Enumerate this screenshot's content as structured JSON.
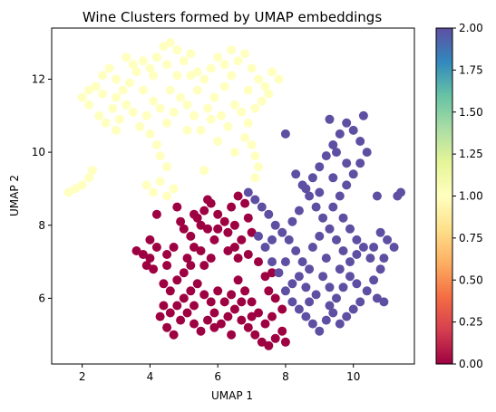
{
  "chart_data": {
    "type": "scatter",
    "title": "Wine Clusters formed by UMAP embeddings",
    "xlabel": "UMAP 1",
    "ylabel": "UMAP 2",
    "xlim": [
      1.1,
      11.8
    ],
    "ylim": [
      4.2,
      13.4
    ],
    "xticks": [
      2,
      4,
      6,
      8,
      10
    ],
    "yticks": [
      6,
      8,
      10,
      12
    ],
    "grid": false,
    "colormap": "Spectral",
    "colorbar": {
      "range": [
        0.0,
        2.0
      ],
      "ticks": [
        "0.00",
        "0.25",
        "0.50",
        "0.75",
        "1.00",
        "1.25",
        "1.50",
        "1.75",
        "2.00"
      ],
      "stops": [
        "#9e0142",
        "#d53e4f",
        "#f46d43",
        "#fdae61",
        "#fee08b",
        "#ffffbf",
        "#e6f598",
        "#abdda4",
        "#66c2a5",
        "#3288bd",
        "#5e4fa2"
      ]
    },
    "series": [
      {
        "cluster": 0,
        "color": "#9e0142",
        "points": [
          [
            3.6,
            7.3
          ],
          [
            3.8,
            7.2
          ],
          [
            4.0,
            7.1
          ],
          [
            3.9,
            6.9
          ],
          [
            4.1,
            6.8
          ],
          [
            4.0,
            7.6
          ],
          [
            4.2,
            7.4
          ],
          [
            4.5,
            7.2
          ],
          [
            4.4,
            6.4
          ],
          [
            4.6,
            6.2
          ],
          [
            4.8,
            6.5
          ],
          [
            5.0,
            6.7
          ],
          [
            5.2,
            6.9
          ],
          [
            5.1,
            7.1
          ],
          [
            5.3,
            7.4
          ],
          [
            5.2,
            7.7
          ],
          [
            4.9,
            8.1
          ],
          [
            5.4,
            8.2
          ],
          [
            5.6,
            8.4
          ],
          [
            5.8,
            8.6
          ],
          [
            6.0,
            8.3
          ],
          [
            6.2,
            8.1
          ],
          [
            6.4,
            8.5
          ],
          [
            6.6,
            8.8
          ],
          [
            6.8,
            8.6
          ],
          [
            6.5,
            8.0
          ],
          [
            6.3,
            7.8
          ],
          [
            6.0,
            7.9
          ],
          [
            5.9,
            7.6
          ],
          [
            5.7,
            7.9
          ],
          [
            5.5,
            8.0
          ],
          [
            5.3,
            8.3
          ],
          [
            6.7,
            7.6
          ],
          [
            6.5,
            7.4
          ],
          [
            6.9,
            7.2
          ],
          [
            6.6,
            7.1
          ],
          [
            6.3,
            7.3
          ],
          [
            4.4,
            5.8
          ],
          [
            4.3,
            5.5
          ],
          [
            4.5,
            5.2
          ],
          [
            4.7,
            5.0
          ],
          [
            4.9,
            5.4
          ],
          [
            5.1,
            5.6
          ],
          [
            5.3,
            5.3
          ],
          [
            5.5,
            5.1
          ],
          [
            5.7,
            5.4
          ],
          [
            5.9,
            5.6
          ],
          [
            6.1,
            5.3
          ],
          [
            6.3,
            5.5
          ],
          [
            6.5,
            5.7
          ],
          [
            6.7,
            5.4
          ],
          [
            6.9,
            5.2
          ],
          [
            7.1,
            5.0
          ],
          [
            7.3,
            4.8
          ],
          [
            7.5,
            4.7
          ],
          [
            7.7,
            4.9
          ],
          [
            7.4,
            5.3
          ],
          [
            7.2,
            5.6
          ],
          [
            7.0,
            5.9
          ],
          [
            6.8,
            6.2
          ],
          [
            6.6,
            6.5
          ],
          [
            6.4,
            6.1
          ],
          [
            6.2,
            5.9
          ],
          [
            6.0,
            6.2
          ],
          [
            5.8,
            5.9
          ],
          [
            5.6,
            6.1
          ],
          [
            5.4,
            6.4
          ],
          [
            5.2,
            6.2
          ],
          [
            5.0,
            6.0
          ],
          [
            4.8,
            5.8
          ],
          [
            4.6,
            5.6
          ],
          [
            5.6,
            6.9
          ],
          [
            5.0,
            7.9
          ],
          [
            5.8,
            7.1
          ],
          [
            7.5,
            6.2
          ],
          [
            7.7,
            6.0
          ],
          [
            7.9,
            5.7
          ],
          [
            7.6,
            5.5
          ],
          [
            7.9,
            5.1
          ],
          [
            8.0,
            4.8
          ],
          [
            4.2,
            8.3
          ],
          [
            4.8,
            8.5
          ],
          [
            5.7,
            8.7
          ],
          [
            6.9,
            8.2
          ],
          [
            7.0,
            7.8
          ],
          [
            7.2,
            7.0
          ],
          [
            7.4,
            6.6
          ],
          [
            7.6,
            6.7
          ],
          [
            5.3,
            5.8
          ],
          [
            5.9,
            5.2
          ],
          [
            6.4,
            5.0
          ],
          [
            6.7,
            5.9
          ],
          [
            7.0,
            5.5
          ],
          [
            4.5,
            6.9
          ],
          [
            4.7,
            7.4
          ],
          [
            5.5,
            7.3
          ]
        ]
      },
      {
        "cluster": 1,
        "color": "#ffffbf",
        "points": [
          [
            1.6,
            8.9
          ],
          [
            1.8,
            9.0
          ],
          [
            2.0,
            9.1
          ],
          [
            2.2,
            9.3
          ],
          [
            2.3,
            9.5
          ],
          [
            2.0,
            11.5
          ],
          [
            2.2,
            11.3
          ],
          [
            2.4,
            11.8
          ],
          [
            2.6,
            12.1
          ],
          [
            2.8,
            12.3
          ],
          [
            3.0,
            12.0
          ],
          [
            3.2,
            11.7
          ],
          [
            3.4,
            11.9
          ],
          [
            3.6,
            12.2
          ],
          [
            3.8,
            12.5
          ],
          [
            4.0,
            12.3
          ],
          [
            4.2,
            12.6
          ],
          [
            4.4,
            12.9
          ],
          [
            4.6,
            13.0
          ],
          [
            4.8,
            12.8
          ],
          [
            5.0,
            12.5
          ],
          [
            5.2,
            12.7
          ],
          [
            5.4,
            12.2
          ],
          [
            5.6,
            12.0
          ],
          [
            5.8,
            12.3
          ],
          [
            6.0,
            12.6
          ],
          [
            6.2,
            12.4
          ],
          [
            6.4,
            12.1
          ],
          [
            6.6,
            12.5
          ],
          [
            6.8,
            12.7
          ],
          [
            7.0,
            12.3
          ],
          [
            7.2,
            12.0
          ],
          [
            7.4,
            11.8
          ],
          [
            7.6,
            12.2
          ],
          [
            7.8,
            12.0
          ],
          [
            7.5,
            11.6
          ],
          [
            2.5,
            11.0
          ],
          [
            2.7,
            10.8
          ],
          [
            2.9,
            11.2
          ],
          [
            3.1,
            10.9
          ],
          [
            3.3,
            11.3
          ],
          [
            3.5,
            11.1
          ],
          [
            3.7,
            10.7
          ],
          [
            3.9,
            11.0
          ],
          [
            4.1,
            11.4
          ],
          [
            4.3,
            11.2
          ],
          [
            4.5,
            10.8
          ],
          [
            4.7,
            11.1
          ],
          [
            4.9,
            11.5
          ],
          [
            5.1,
            11.3
          ],
          [
            5.3,
            11.0
          ],
          [
            5.5,
            10.6
          ],
          [
            5.7,
            11.2
          ],
          [
            5.9,
            11.5
          ],
          [
            6.1,
            11.0
          ],
          [
            6.3,
            10.7
          ],
          [
            6.5,
            11.3
          ],
          [
            6.7,
            11.1
          ],
          [
            6.9,
            10.8
          ],
          [
            7.1,
            11.2
          ],
          [
            6.8,
            10.4
          ],
          [
            7.0,
            10.2
          ],
          [
            7.1,
            9.9
          ],
          [
            7.2,
            9.6
          ],
          [
            7.1,
            9.3
          ],
          [
            2.6,
            11.6
          ],
          [
            3.0,
            11.5
          ],
          [
            3.5,
            12.4
          ],
          [
            4.1,
            12.1
          ],
          [
            4.5,
            12.4
          ],
          [
            4.0,
            10.5
          ],
          [
            4.2,
            10.2
          ],
          [
            4.3,
            9.9
          ],
          [
            4.5,
            9.6
          ],
          [
            4.3,
            9.2
          ],
          [
            4.1,
            8.9
          ],
          [
            3.9,
            9.1
          ],
          [
            4.5,
            8.8
          ],
          [
            4.7,
            9.0
          ],
          [
            3.0,
            10.6
          ],
          [
            5.4,
            11.7
          ],
          [
            5.8,
            10.9
          ],
          [
            6.2,
            11.8
          ],
          [
            6.9,
            11.7
          ],
          [
            7.3,
            11.4
          ],
          [
            2.2,
            11.7
          ],
          [
            3.3,
            12.6
          ],
          [
            4.8,
            12.1
          ],
          [
            5.1,
            10.6
          ],
          [
            6.0,
            10.3
          ],
          [
            6.5,
            10.0
          ],
          [
            5.6,
            9.5
          ],
          [
            3.8,
            11.7
          ],
          [
            4.6,
            11.7
          ],
          [
            5.2,
            12.1
          ],
          [
            6.4,
            12.8
          ]
        ]
      },
      {
        "cluster": 2,
        "color": "#5e4fa2",
        "points": [
          [
            6.9,
            8.9
          ],
          [
            7.1,
            8.7
          ],
          [
            7.3,
            8.5
          ],
          [
            7.5,
            8.3
          ],
          [
            7.7,
            8.0
          ],
          [
            7.9,
            7.8
          ],
          [
            7.6,
            7.6
          ],
          [
            7.4,
            7.4
          ],
          [
            7.2,
            7.7
          ],
          [
            8.1,
            7.6
          ],
          [
            8.3,
            7.3
          ],
          [
            8.5,
            7.0
          ],
          [
            8.7,
            6.8
          ],
          [
            8.4,
            6.6
          ],
          [
            8.2,
            6.4
          ],
          [
            8.0,
            6.2
          ],
          [
            8.2,
            5.9
          ],
          [
            8.4,
            5.7
          ],
          [
            8.6,
            5.5
          ],
          [
            8.8,
            5.3
          ],
          [
            9.0,
            5.1
          ],
          [
            9.2,
            5.4
          ],
          [
            9.4,
            5.6
          ],
          [
            9.6,
            5.3
          ],
          [
            9.8,
            5.5
          ],
          [
            10.0,
            5.7
          ],
          [
            10.2,
            5.9
          ],
          [
            10.4,
            6.2
          ],
          [
            10.6,
            6.5
          ],
          [
            10.8,
            6.8
          ],
          [
            10.5,
            7.1
          ],
          [
            10.3,
            7.4
          ],
          [
            10.1,
            7.2
          ],
          [
            9.9,
            7.0
          ],
          [
            9.7,
            7.3
          ],
          [
            9.5,
            7.6
          ],
          [
            9.3,
            7.9
          ],
          [
            9.1,
            8.2
          ],
          [
            8.9,
            8.5
          ],
          [
            8.7,
            8.8
          ],
          [
            8.5,
            9.1
          ],
          [
            8.3,
            9.4
          ],
          [
            8.6,
            9.0
          ],
          [
            8.8,
            9.3
          ],
          [
            9.0,
            9.6
          ],
          [
            9.2,
            9.9
          ],
          [
            9.4,
            10.2
          ],
          [
            9.6,
            10.5
          ],
          [
            9.8,
            10.8
          ],
          [
            10.0,
            10.6
          ],
          [
            10.2,
            10.3
          ],
          [
            10.4,
            10.0
          ],
          [
            10.2,
            9.7
          ],
          [
            10.0,
            9.4
          ],
          [
            9.8,
            9.1
          ],
          [
            9.6,
            8.8
          ],
          [
            9.4,
            8.5
          ],
          [
            9.7,
            8.2
          ],
          [
            9.9,
            7.9
          ],
          [
            10.1,
            7.6
          ],
          [
            10.8,
            7.8
          ],
          [
            11.0,
            7.6
          ],
          [
            11.2,
            7.4
          ],
          [
            10.9,
            7.1
          ],
          [
            11.3,
            8.8
          ],
          [
            11.4,
            8.9
          ],
          [
            10.7,
            8.8
          ],
          [
            8.0,
            10.5
          ],
          [
            9.3,
            10.9
          ],
          [
            10.3,
            11.0
          ],
          [
            7.6,
            7.0
          ],
          [
            7.8,
            6.7
          ],
          [
            8.0,
            7.0
          ],
          [
            9.1,
            6.6
          ],
          [
            9.3,
            6.3
          ],
          [
            9.5,
            6.0
          ],
          [
            9.7,
            6.3
          ],
          [
            9.9,
            6.6
          ],
          [
            10.1,
            6.4
          ],
          [
            8.9,
            6.1
          ],
          [
            8.6,
            6.3
          ],
          [
            8.8,
            7.4
          ],
          [
            9.0,
            7.7
          ],
          [
            9.2,
            7.1
          ],
          [
            9.6,
            6.8
          ],
          [
            10.7,
            6.0
          ],
          [
            10.9,
            5.9
          ],
          [
            9.0,
            8.9
          ],
          [
            9.4,
            9.3
          ],
          [
            9.8,
            9.7
          ],
          [
            9.5,
            10.0
          ],
          [
            8.4,
            8.4
          ],
          [
            8.2,
            8.1
          ],
          [
            10.6,
            7.4
          ],
          [
            8.7,
            5.9
          ],
          [
            9.3,
            5.8
          ]
        ]
      }
    ]
  }
}
